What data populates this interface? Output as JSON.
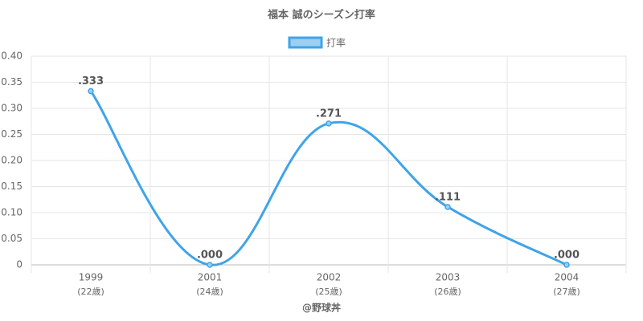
{
  "chart_data": {
    "type": "line",
    "title": "福本 誠のシーズン打率",
    "categories": [
      "1999",
      "2001",
      "2002",
      "2003",
      "2004"
    ],
    "sublabels": [
      "(22歳)",
      "(24歳)",
      "(25歳)",
      "(26歳)",
      "(27歳)"
    ],
    "series": [
      {
        "name": "打率",
        "color": "#3fa4e8",
        "fill": "#9ccff2",
        "values": [
          0.333,
          0,
          0.271,
          0.111,
          0
        ],
        "value_labels": [
          ".333",
          ".000",
          ".271",
          ".111",
          ".000"
        ]
      }
    ],
    "ylim": [
      0,
      0.4
    ],
    "yticks": [
      0,
      0.05,
      {
        "value": 0.1,
        "label": "0.10"
      },
      0.15,
      {
        "value": 0.2,
        "label": "0.20"
      },
      0.25,
      {
        "value": 0.3,
        "label": "0.30"
      },
      0.35,
      {
        "value": 0.4,
        "label": "0.40"
      }
    ],
    "grid": true,
    "legend": "top",
    "footer": "@野球丼"
  }
}
